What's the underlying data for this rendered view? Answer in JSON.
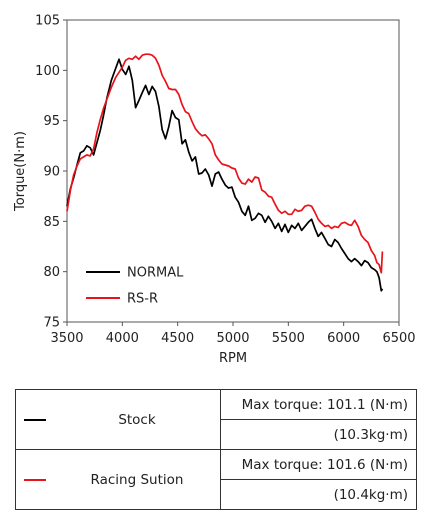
{
  "chart_data": {
    "type": "line",
    "xlabel": "RPM",
    "ylabel": "Torque(N·m)",
    "xlim": [
      3500,
      6500
    ],
    "ylim": [
      75,
      105
    ],
    "x_ticks": [
      3500,
      4000,
      4500,
      5000,
      5500,
      6000,
      6500
    ],
    "y_ticks": [
      75,
      80,
      85,
      90,
      95,
      100,
      105
    ],
    "grid": false,
    "legend_position": "bottom-left",
    "series": [
      {
        "name": "NORMAL",
        "color": "#000000",
        "x": [
          3500,
          3530,
          3560,
          3590,
          3620,
          3650,
          3680,
          3710,
          3740,
          3770,
          3800,
          3830,
          3860,
          3900,
          3940,
          3970,
          4000,
          4030,
          4060,
          4090,
          4120,
          4150,
          4180,
          4210,
          4240,
          4270,
          4300,
          4330,
          4360,
          4390,
          4420,
          4450,
          4480,
          4510,
          4540,
          4570,
          4600,
          4630,
          4660,
          4690,
          4720,
          4750,
          4780,
          4810,
          4840,
          4870,
          4900,
          4930,
          4960,
          4990,
          5020,
          5050,
          5080,
          5110,
          5140,
          5170,
          5200,
          5230,
          5260,
          5290,
          5320,
          5350,
          5380,
          5410,
          5440,
          5470,
          5500,
          5530,
          5560,
          5590,
          5620,
          5650,
          5680,
          5710,
          5740,
          5770,
          5800,
          5830,
          5860,
          5890,
          5920,
          5950,
          5980,
          6010,
          6040,
          6070,
          6100,
          6130,
          6160,
          6190,
          6220,
          6250,
          6280,
          6300,
          6320,
          6340,
          6350
        ],
        "y": [
          86.5,
          88.2,
          89.3,
          90.6,
          91.8,
          92.0,
          92.5,
          92.3,
          91.6,
          92.8,
          94.0,
          95.5,
          97.2,
          99.0,
          100.2,
          101.1,
          100.1,
          99.6,
          100.4,
          99.0,
          96.3,
          97.0,
          97.8,
          98.5,
          97.6,
          98.4,
          97.9,
          96.4,
          94.1,
          93.2,
          94.4,
          96.0,
          95.3,
          95.1,
          92.7,
          93.1,
          91.9,
          91.0,
          91.4,
          89.7,
          89.8,
          90.2,
          89.6,
          88.5,
          89.7,
          89.9,
          89.2,
          88.6,
          88.3,
          88.4,
          87.4,
          86.9,
          86.0,
          85.6,
          86.5,
          85.1,
          85.3,
          85.8,
          85.6,
          84.9,
          85.5,
          85.0,
          84.3,
          84.8,
          84.0,
          84.7,
          83.9,
          84.6,
          84.3,
          84.8,
          84.1,
          84.5,
          84.9,
          85.2,
          84.3,
          83.5,
          83.9,
          83.3,
          82.7,
          82.5,
          83.2,
          82.9,
          82.3,
          81.8,
          81.3,
          81.0,
          81.3,
          81.0,
          80.6,
          81.1,
          80.9,
          80.4,
          80.2,
          80.0,
          79.4,
          78.1,
          78.3
        ]
      },
      {
        "name": "RS-R",
        "color": "#e8141c",
        "x": [
          3500,
          3530,
          3560,
          3590,
          3620,
          3650,
          3680,
          3710,
          3740,
          3770,
          3800,
          3830,
          3860,
          3900,
          3940,
          3970,
          4000,
          4030,
          4060,
          4090,
          4120,
          4150,
          4180,
          4210,
          4240,
          4270,
          4300,
          4330,
          4360,
          4390,
          4420,
          4450,
          4480,
          4510,
          4540,
          4570,
          4600,
          4630,
          4660,
          4690,
          4720,
          4750,
          4780,
          4810,
          4840,
          4870,
          4900,
          4930,
          4960,
          4990,
          5020,
          5050,
          5080,
          5110,
          5140,
          5170,
          5200,
          5230,
          5260,
          5290,
          5320,
          5350,
          5380,
          5410,
          5440,
          5470,
          5500,
          5530,
          5560,
          5590,
          5620,
          5650,
          5680,
          5710,
          5740,
          5770,
          5800,
          5830,
          5860,
          5890,
          5920,
          5950,
          5980,
          6010,
          6040,
          6070,
          6100,
          6130,
          6160,
          6190,
          6220,
          6250,
          6280,
          6300,
          6320,
          6340,
          6350
        ],
        "y": [
          86.0,
          88.0,
          89.6,
          90.5,
          91.2,
          91.4,
          91.6,
          91.5,
          92.2,
          93.8,
          95.1,
          96.2,
          97.1,
          98.3,
          99.3,
          99.8,
          100.3,
          101.0,
          101.2,
          101.1,
          101.4,
          101.1,
          101.5,
          101.6,
          101.6,
          101.5,
          101.2,
          100.5,
          99.5,
          98.9,
          98.2,
          98.1,
          98.1,
          97.6,
          96.6,
          95.9,
          95.7,
          94.9,
          94.2,
          93.8,
          93.5,
          93.6,
          93.2,
          92.7,
          91.6,
          91.1,
          90.7,
          90.6,
          90.5,
          90.3,
          90.2,
          89.3,
          88.8,
          88.7,
          89.2,
          88.9,
          89.4,
          89.3,
          88.1,
          87.9,
          87.5,
          87.4,
          86.7,
          86.1,
          85.8,
          86.0,
          85.7,
          85.7,
          86.2,
          86.0,
          86.1,
          86.5,
          86.6,
          86.5,
          85.9,
          85.2,
          84.8,
          84.5,
          84.6,
          84.3,
          84.5,
          84.4,
          84.8,
          84.9,
          84.7,
          84.6,
          85.1,
          84.5,
          83.6,
          83.2,
          82.9,
          82.1,
          81.6,
          80.9,
          80.7,
          79.9,
          82.0
        ]
      }
    ]
  },
  "summary_table": {
    "rows": [
      {
        "swatch_color": "#000000",
        "name": "Stock",
        "max_torque": "Max torque: 101.1 (N·m)",
        "kgm": "(10.3kg·m)"
      },
      {
        "swatch_color": "#e8141c",
        "name": "Racing Sution",
        "max_torque": "Max torque: 101.6 (N·m)",
        "kgm": "(10.4kg·m)"
      }
    ]
  }
}
